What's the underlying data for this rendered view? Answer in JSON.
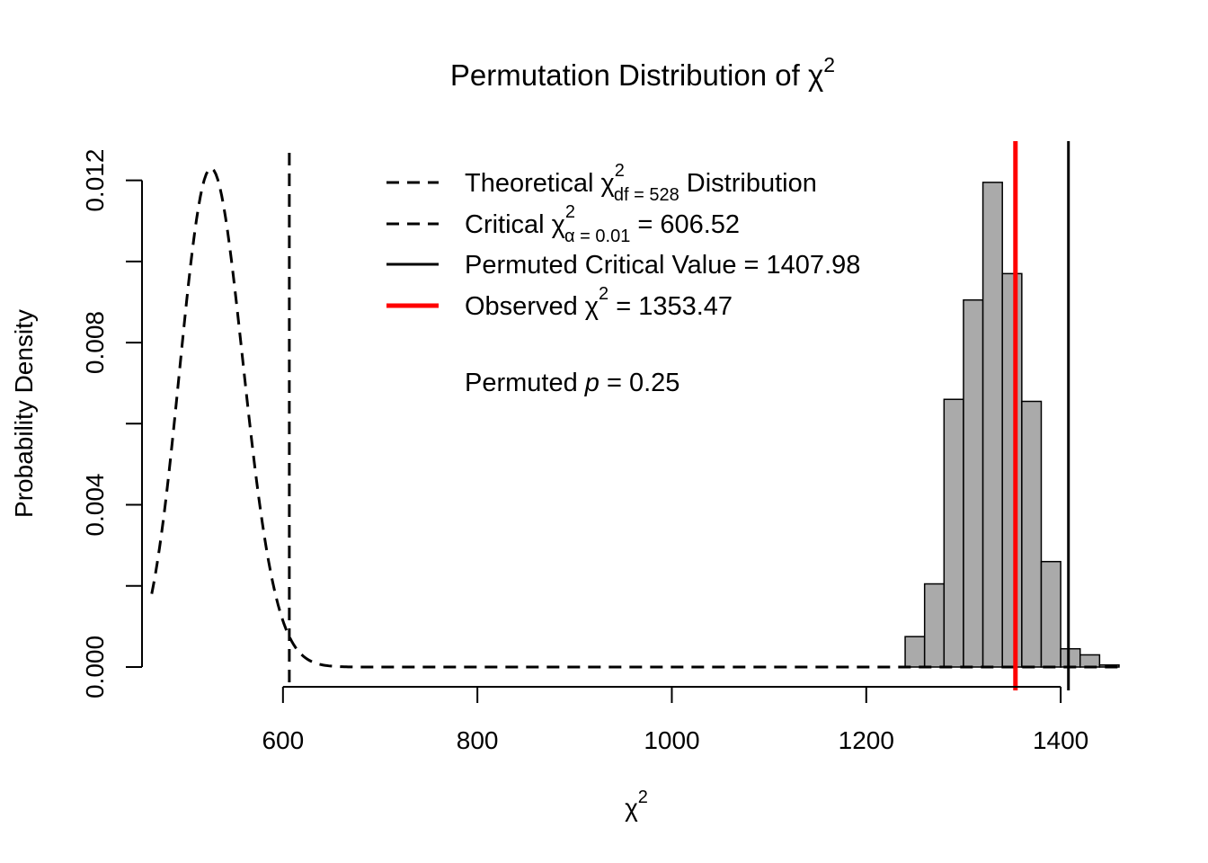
{
  "chart_data": {
    "type": "histogram",
    "title": {
      "prefix": "Permutation Distribution of ",
      "symbol": "χ",
      "sup": "2"
    },
    "xlabel": {
      "symbol": "χ",
      "sup": "2"
    },
    "ylabel": "Probability Density",
    "xlim": [
      455,
      1460
    ],
    "ylim": [
      0,
      0.0129
    ],
    "x_ticks": [
      {
        "value": 600,
        "label": "600"
      },
      {
        "value": 800,
        "label": "800"
      },
      {
        "value": 1000,
        "label": "1000"
      },
      {
        "value": 1200,
        "label": "1200"
      },
      {
        "value": 1400,
        "label": "1400"
      }
    ],
    "y_ticks": [
      {
        "value": 0.0,
        "label": "0.000"
      },
      {
        "value": 0.002,
        "label": ""
      },
      {
        "value": 0.004,
        "label": "0.004"
      },
      {
        "value": 0.006,
        "label": ""
      },
      {
        "value": 0.008,
        "label": "0.008"
      },
      {
        "value": 0.01,
        "label": ""
      },
      {
        "value": 0.012,
        "label": "0.012"
      }
    ],
    "histogram": {
      "bin_width": 20,
      "fill": "#aaaaaa",
      "bins": [
        {
          "start": 1240,
          "density": 0.00075
        },
        {
          "start": 1260,
          "density": 0.00205
        },
        {
          "start": 1280,
          "density": 0.0066
        },
        {
          "start": 1300,
          "density": 0.00905
        },
        {
          "start": 1320,
          "density": 0.01195
        },
        {
          "start": 1340,
          "density": 0.0097
        },
        {
          "start": 1360,
          "density": 0.00655
        },
        {
          "start": 1380,
          "density": 0.0026
        },
        {
          "start": 1400,
          "density": 0.00045
        },
        {
          "start": 1420,
          "density": 0.0003
        },
        {
          "start": 1440,
          "density": 5e-05
        }
      ]
    },
    "theoretical_curve": {
      "df": 528,
      "x_from": 465,
      "x_to": 1460,
      "style": "dashed"
    },
    "vlines": [
      {
        "name": "critical",
        "x": 606.52,
        "color": "#000000",
        "style": "dashed",
        "width": 3
      },
      {
        "name": "observed",
        "x": 1353.47,
        "color": "#ff0000",
        "style": "solid",
        "width": 5
      },
      {
        "name": "permuted-critical",
        "x": 1407.98,
        "color": "#000000",
        "style": "solid",
        "width": 3
      }
    ],
    "legend": {
      "position": "top-center",
      "entries": [
        {
          "style": "dashed",
          "color": "#000000",
          "prefix": "Theoretical ",
          "symbol": "χ",
          "sup": "2",
          "sub": "df = 528",
          "suffix": " Distribution"
        },
        {
          "style": "dashed",
          "color": "#000000",
          "prefix": "Critical ",
          "symbol": "χ",
          "sup": "2",
          "sub": "α  = 0.01",
          "suffix": " = 606.52"
        },
        {
          "style": "solid",
          "color": "#000000",
          "prefix": "Permuted Critical Value = 1407.98",
          "symbol": "",
          "sup": "",
          "sub": "",
          "suffix": ""
        },
        {
          "style": "solid-thick",
          "color": "#ff0000",
          "prefix": "Observed ",
          "symbol": "χ",
          "sup": "2",
          "sub": "",
          "suffix": " = 1353.47"
        }
      ]
    },
    "annotation": {
      "prefix": "Permuted ",
      "italic": "p",
      "suffix": " = 0.25"
    }
  }
}
